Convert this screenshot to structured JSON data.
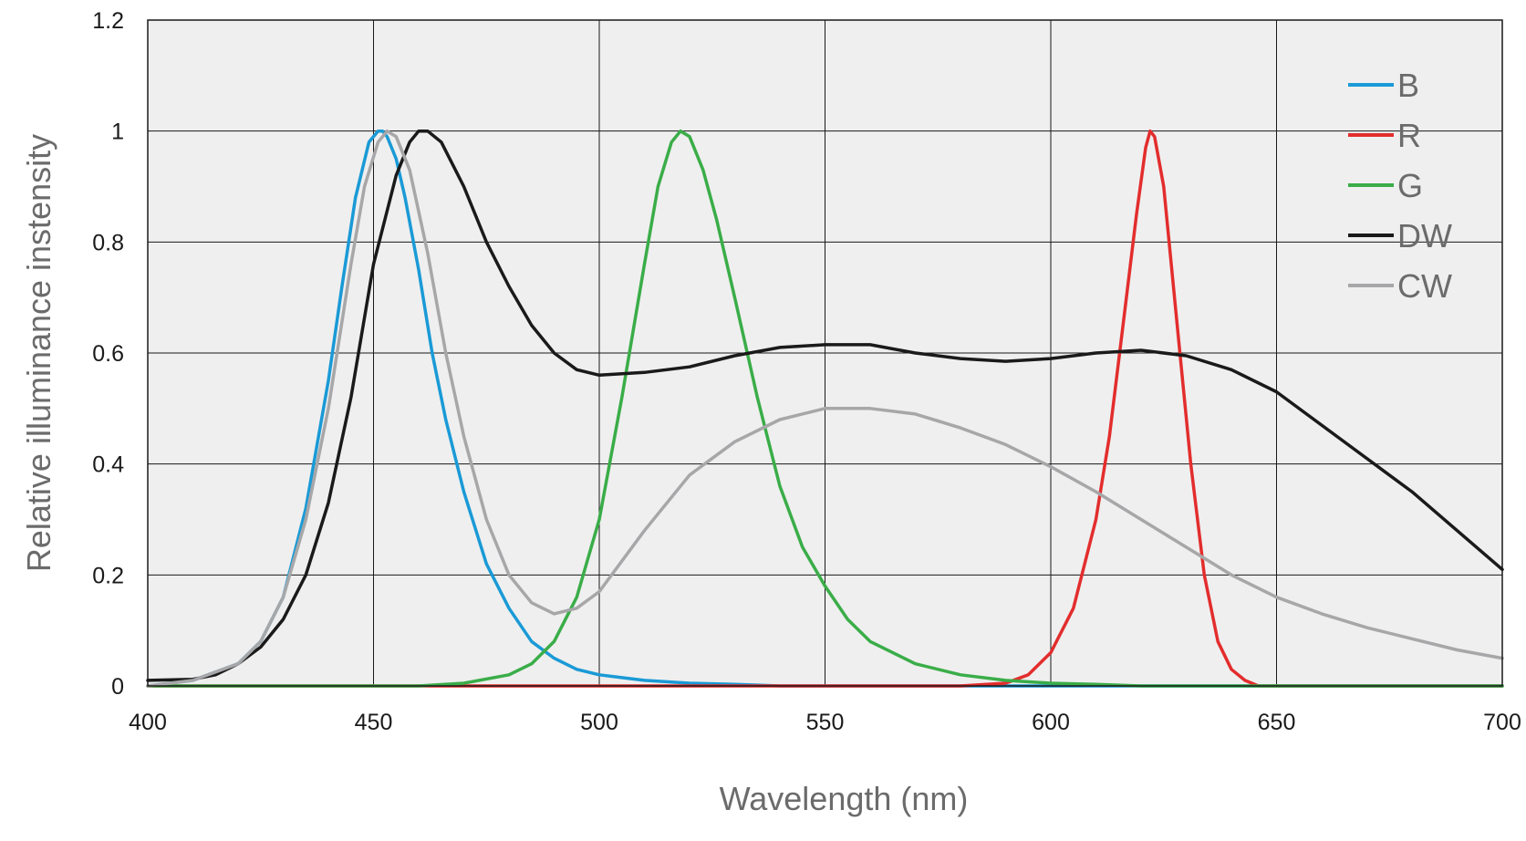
{
  "chart_data": {
    "type": "line",
    "title": "",
    "xlabel": "Wavelength (nm)",
    "ylabel": "Relative illuminance instensity",
    "xlim": [
      400,
      700
    ],
    "ylim": [
      0,
      1.2
    ],
    "x_ticks": [
      400,
      450,
      500,
      550,
      600,
      650,
      700
    ],
    "y_ticks": [
      0,
      0.2,
      0.4,
      0.6,
      0.8,
      1,
      1.2
    ],
    "x_tick_labels": [
      "400",
      "450",
      "500",
      "550",
      "600",
      "650",
      "700"
    ],
    "y_tick_labels": [
      "0",
      "0.2",
      "0.4",
      "0.6",
      "0.8",
      "1",
      "1.2"
    ],
    "grid": true,
    "legend_position": "top-right",
    "series": [
      {
        "name": "B",
        "color": "#1a9ad6",
        "x": [
          400,
          410,
          420,
          425,
          430,
          435,
          440,
          443,
          446,
          449,
          451,
          452,
          453,
          455,
          457,
          460,
          463,
          466,
          470,
          475,
          480,
          485,
          490,
          495,
          500,
          505,
          510,
          520,
          530,
          540,
          560,
          580,
          600,
          650,
          700
        ],
        "y": [
          0.0,
          0.01,
          0.04,
          0.08,
          0.16,
          0.32,
          0.55,
          0.72,
          0.88,
          0.98,
          1.0,
          1.0,
          0.99,
          0.95,
          0.88,
          0.75,
          0.6,
          0.48,
          0.35,
          0.22,
          0.14,
          0.08,
          0.05,
          0.03,
          0.02,
          0.015,
          0.01,
          0.005,
          0.003,
          0.0,
          0.0,
          0.0,
          0.0,
          0.0,
          0.0
        ]
      },
      {
        "name": "R",
        "color": "#e32d2d",
        "x": [
          400,
          450,
          500,
          550,
          580,
          590,
          595,
          600,
          605,
          610,
          613,
          616,
          619,
          621,
          622,
          623,
          625,
          628,
          631,
          634,
          637,
          640,
          643,
          646,
          650,
          700
        ],
        "y": [
          0.0,
          0.0,
          0.0,
          0.0,
          0.0,
          0.005,
          0.02,
          0.06,
          0.14,
          0.3,
          0.45,
          0.65,
          0.85,
          0.97,
          1.0,
          0.99,
          0.9,
          0.65,
          0.4,
          0.2,
          0.08,
          0.03,
          0.01,
          0.0,
          0.0,
          0.0
        ]
      },
      {
        "name": "G",
        "color": "#3aad48",
        "x": [
          400,
          460,
          470,
          480,
          485,
          490,
          495,
          500,
          505,
          510,
          513,
          516,
          518,
          520,
          523,
          526,
          530,
          535,
          540,
          545,
          550,
          555,
          560,
          570,
          580,
          590,
          600,
          610,
          620,
          700
        ],
        "y": [
          0.0,
          0.0,
          0.005,
          0.02,
          0.04,
          0.08,
          0.16,
          0.3,
          0.52,
          0.76,
          0.9,
          0.98,
          1.0,
          0.99,
          0.93,
          0.84,
          0.7,
          0.52,
          0.36,
          0.25,
          0.18,
          0.12,
          0.08,
          0.04,
          0.02,
          0.01,
          0.005,
          0.003,
          0.0,
          0.0
        ]
      },
      {
        "name": "DW",
        "color": "#1a1a1a",
        "x": [
          400,
          410,
          415,
          420,
          425,
          430,
          435,
          440,
          445,
          450,
          455,
          458,
          460,
          462,
          465,
          470,
          475,
          480,
          485,
          490,
          495,
          500,
          510,
          520,
          530,
          540,
          550,
          560,
          570,
          580,
          590,
          600,
          610,
          620,
          630,
          640,
          650,
          660,
          670,
          680,
          690,
          700
        ],
        "y": [
          0.01,
          0.012,
          0.02,
          0.04,
          0.07,
          0.12,
          0.2,
          0.33,
          0.52,
          0.76,
          0.92,
          0.98,
          1.0,
          1.0,
          0.98,
          0.9,
          0.8,
          0.72,
          0.65,
          0.6,
          0.57,
          0.56,
          0.565,
          0.575,
          0.595,
          0.61,
          0.615,
          0.615,
          0.6,
          0.59,
          0.585,
          0.59,
          0.6,
          0.605,
          0.595,
          0.57,
          0.53,
          0.47,
          0.41,
          0.35,
          0.28,
          0.21
        ]
      },
      {
        "name": "CW",
        "color": "#a7a7a9",
        "x": [
          400,
          410,
          420,
          425,
          430,
          435,
          440,
          445,
          448,
          451,
          453,
          455,
          458,
          462,
          466,
          470,
          475,
          480,
          485,
          490,
          495,
          500,
          510,
          520,
          530,
          540,
          550,
          560,
          570,
          580,
          590,
          600,
          610,
          620,
          630,
          640,
          650,
          660,
          670,
          680,
          690,
          700
        ],
        "y": [
          0.0,
          0.01,
          0.04,
          0.08,
          0.16,
          0.3,
          0.5,
          0.76,
          0.9,
          0.98,
          1.0,
          0.99,
          0.93,
          0.78,
          0.6,
          0.45,
          0.3,
          0.2,
          0.15,
          0.13,
          0.14,
          0.17,
          0.28,
          0.38,
          0.44,
          0.48,
          0.5,
          0.5,
          0.49,
          0.465,
          0.435,
          0.395,
          0.35,
          0.3,
          0.25,
          0.2,
          0.16,
          0.13,
          0.105,
          0.085,
          0.065,
          0.05
        ]
      }
    ]
  }
}
